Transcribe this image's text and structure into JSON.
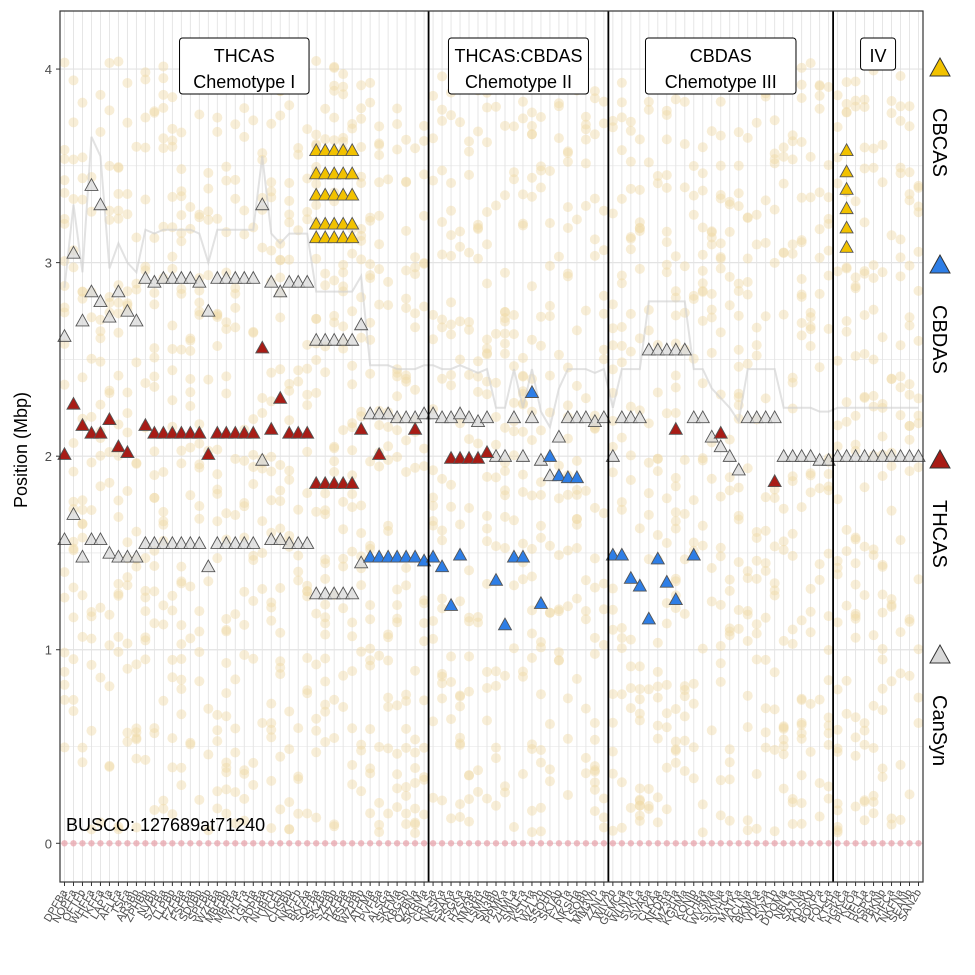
{
  "chart_data": {
    "type": "scatter",
    "ylabel": "Position (Mbp)",
    "xlabel": "",
    "ylim": [
      -0.2,
      4.3
    ],
    "yticks": [
      0,
      1,
      2,
      3,
      4
    ],
    "grid": true,
    "annotation": "BUSCO: 127689at71240",
    "colors": {
      "CBCAS": "#f2c200",
      "CBDAS": "#2e7ee6",
      "THCAS": "#a81c16",
      "CanSyn": "#d9d9d9",
      "busco": "#f0d9a6",
      "baseline": "#e8a0a8"
    },
    "legend": [
      {
        "name": "CBCAS",
        "color": "#f2c200"
      },
      {
        "name": "CBDAS",
        "color": "#2e7ee6"
      },
      {
        "name": "THCAS",
        "color": "#a81c16"
      },
      {
        "name": "CanSyn",
        "color": "#d9d9d9"
      }
    ],
    "groups": [
      {
        "label_lines": [
          "THCAS",
          "Chemotype I"
        ],
        "from": 0,
        "to": 40
      },
      {
        "label_lines": [
          "THCAS:CBDAS",
          "Chemotype II"
        ],
        "from": 41,
        "to": 60
      },
      {
        "label_lines": [
          "CBDAS",
          "Chemotype III"
        ],
        "from": 61,
        "to": 85
      },
      {
        "label_lines": [
          "IV"
        ],
        "from": 86,
        "to": 95
      }
    ],
    "categories": [
      "DPFBa",
      "NOPFa",
      "OFTFb",
      "WHFFa",
      "TKFFa",
      "LAPTa",
      "AFLFa",
      "TSFa",
      "AR3Bb",
      "ZPHBb",
      "NVBb",
      "SZFBa",
      "LLPBb",
      "FZFBa",
      "FSFBa",
      "SD0Bb",
      "SPFBb",
      "WZFBa",
      "MBFBb",
      "MBFBa",
      "VHLFa",
      "LGLHa",
      "ADPBa",
      "NHBFb",
      "VICEb",
      "CHSBb",
      "NKFFb",
      "BKFAa",
      "SQFBa",
      "SK2Ba",
      "SZFBb",
      "HZFBa",
      "BSFBa",
      "WZPBb",
      "ATFMa",
      "PVFBa",
      "ALSGa",
      "SKFMa",
      "KBGSb",
      "QZBNa",
      "SKRMa",
      "CRLSa",
      "NKSKa",
      "ESAKa",
      "FSGKa",
      "HZSAa",
      "NM3Ba",
      "LSMHa",
      "SN3Bb",
      "PPMKa",
      "ZHMLa",
      "SMLFa",
      "KSTHa",
      "WZL2b",
      "SSOHb",
      "SKTAb",
      "FZPTa",
      "NKSHa",
      "LSOBb",
      "MM3Vb",
      "ZZNLa",
      "WIV2b",
      "GEMCa",
      "WLNTa",
      "SVKLa",
      "SVA6a",
      "CLKAa",
      "NFDRa",
      "MZ3Ha",
      "KGHMa",
      "KONIb",
      "FCHBa",
      "WV3Ma",
      "SVKNa",
      "SVHCa",
      "MATKa",
      "ACLNa",
      "BKMKa",
      "VDKSa",
      "SVK1b",
      "DDOMa",
      "NBLTa",
      "SA7Na",
      "KDSKb",
      "BOKPa",
      "FOLCa",
      "KTSHa",
      "HGKCa",
      "PKEOa",
      "HFL1a",
      "RSPCa",
      "PBKNb",
      "ZHFCa",
      "NKFNa",
      "SEANb",
      "SAN2b"
    ],
    "series": [
      {
        "name": "CanSyn",
        "points": [
          [
            0,
            2.62
          ],
          [
            0,
            1.57
          ],
          [
            1,
            1.7
          ],
          [
            1,
            3.05
          ],
          [
            2,
            2.7
          ],
          [
            2,
            1.48
          ],
          [
            3,
            3.4
          ],
          [
            3,
            2.85
          ],
          [
            3,
            1.57
          ],
          [
            4,
            3.3
          ],
          [
            4,
            2.8
          ],
          [
            4,
            1.57
          ],
          [
            5,
            2.72
          ],
          [
            5,
            1.5
          ],
          [
            6,
            2.85
          ],
          [
            6,
            1.48
          ],
          [
            7,
            2.75
          ],
          [
            7,
            1.48
          ],
          [
            8,
            2.7
          ],
          [
            8,
            1.48
          ],
          [
            9,
            2.92
          ],
          [
            9,
            1.55
          ],
          [
            10,
            2.9
          ],
          [
            10,
            1.55
          ],
          [
            11,
            2.92
          ],
          [
            11,
            1.55
          ],
          [
            12,
            2.92
          ],
          [
            12,
            1.55
          ],
          [
            13,
            2.92
          ],
          [
            13,
            1.55
          ],
          [
            14,
            2.92
          ],
          [
            14,
            1.55
          ],
          [
            15,
            2.9
          ],
          [
            15,
            1.55
          ],
          [
            16,
            2.75
          ],
          [
            16,
            1.43
          ],
          [
            17,
            2.92
          ],
          [
            17,
            1.55
          ],
          [
            18,
            2.92
          ],
          [
            18,
            1.55
          ],
          [
            19,
            2.92
          ],
          [
            19,
            1.55
          ],
          [
            20,
            2.92
          ],
          [
            20,
            1.55
          ],
          [
            21,
            2.92
          ],
          [
            21,
            1.55
          ],
          [
            22,
            3.3
          ],
          [
            22,
            1.98
          ],
          [
            23,
            2.9
          ],
          [
            23,
            1.57
          ],
          [
            24,
            2.85
          ],
          [
            24,
            1.57
          ],
          [
            25,
            2.9
          ],
          [
            25,
            1.55
          ],
          [
            26,
            2.9
          ],
          [
            26,
            1.55
          ],
          [
            27,
            2.9
          ],
          [
            27,
            1.55
          ],
          [
            28,
            2.6
          ],
          [
            28,
            1.29
          ],
          [
            29,
            2.6
          ],
          [
            29,
            1.29
          ],
          [
            30,
            2.6
          ],
          [
            30,
            1.29
          ],
          [
            31,
            2.6
          ],
          [
            31,
            1.29
          ],
          [
            32,
            2.6
          ],
          [
            32,
            1.29
          ],
          [
            33,
            2.68
          ],
          [
            33,
            1.45
          ],
          [
            34,
            2.22
          ],
          [
            35,
            2.22
          ],
          [
            36,
            2.22
          ],
          [
            37,
            2.2
          ],
          [
            38,
            2.2
          ],
          [
            39,
            2.2
          ],
          [
            40,
            2.22
          ],
          [
            41,
            2.22
          ],
          [
            42,
            2.2
          ],
          [
            43,
            2.2
          ],
          [
            44,
            2.22
          ],
          [
            45,
            2.2
          ],
          [
            46,
            2.18
          ],
          [
            47,
            2.2
          ],
          [
            48,
            2.0
          ],
          [
            49,
            2.0
          ],
          [
            50,
            2.2
          ],
          [
            51,
            2.0
          ],
          [
            52,
            2.2
          ],
          [
            53,
            1.98
          ],
          [
            54,
            1.9
          ],
          [
            55,
            2.1
          ],
          [
            56,
            2.2
          ],
          [
            57,
            2.2
          ],
          [
            58,
            2.2
          ],
          [
            59,
            2.18
          ],
          [
            60,
            2.2
          ],
          [
            61,
            2.0
          ],
          [
            62,
            2.2
          ],
          [
            63,
            2.2
          ],
          [
            64,
            2.2
          ],
          [
            65,
            2.55
          ],
          [
            66,
            2.55
          ],
          [
            67,
            2.55
          ],
          [
            68,
            2.55
          ],
          [
            69,
            2.55
          ],
          [
            70,
            2.2
          ],
          [
            71,
            2.2
          ],
          [
            72,
            2.1
          ],
          [
            73,
            2.05
          ],
          [
            74,
            2.0
          ],
          [
            75,
            1.93
          ],
          [
            76,
            2.2
          ],
          [
            77,
            2.2
          ],
          [
            78,
            2.2
          ],
          [
            79,
            2.2
          ],
          [
            80,
            2.0
          ],
          [
            81,
            2.0
          ],
          [
            82,
            2.0
          ],
          [
            83,
            2.0
          ],
          [
            84,
            1.98
          ],
          [
            85,
            1.98
          ],
          [
            86,
            2.0
          ],
          [
            87,
            2.0
          ],
          [
            88,
            2.0
          ],
          [
            89,
            2.0
          ],
          [
            90,
            2.0
          ],
          [
            91,
            2.0
          ],
          [
            92,
            2.0
          ],
          [
            93,
            2.0
          ],
          [
            94,
            2.0
          ],
          [
            95,
            2.0
          ]
        ]
      },
      {
        "name": "THCAS",
        "points": [
          [
            0,
            2.01
          ],
          [
            1,
            2.27
          ],
          [
            2,
            2.16
          ],
          [
            3,
            2.12
          ],
          [
            4,
            2.12
          ],
          [
            5,
            2.19
          ],
          [
            6,
            2.05
          ],
          [
            7,
            2.02
          ],
          [
            9,
            2.16
          ],
          [
            10,
            2.12
          ],
          [
            11,
            2.12
          ],
          [
            12,
            2.12
          ],
          [
            13,
            2.12
          ],
          [
            14,
            2.12
          ],
          [
            15,
            2.12
          ],
          [
            16,
            2.01
          ],
          [
            17,
            2.12
          ],
          [
            18,
            2.12
          ],
          [
            19,
            2.12
          ],
          [
            20,
            2.12
          ],
          [
            21,
            2.12
          ],
          [
            22,
            2.56
          ],
          [
            23,
            2.14
          ],
          [
            24,
            2.3
          ],
          [
            25,
            2.12
          ],
          [
            26,
            2.12
          ],
          [
            27,
            2.12
          ],
          [
            28,
            1.86
          ],
          [
            29,
            1.86
          ],
          [
            30,
            1.86
          ],
          [
            31,
            1.86
          ],
          [
            32,
            1.86
          ],
          [
            33,
            2.14
          ],
          [
            35,
            2.01
          ],
          [
            39,
            2.14
          ],
          [
            43,
            1.99
          ],
          [
            44,
            1.99
          ],
          [
            45,
            1.99
          ],
          [
            46,
            1.99
          ],
          [
            47,
            2.02
          ],
          [
            68,
            2.14
          ],
          [
            73,
            2.12
          ],
          [
            79,
            1.87
          ]
        ]
      },
      {
        "name": "CBDAS",
        "points": [
          [
            34,
            1.48
          ],
          [
            35,
            1.48
          ],
          [
            36,
            1.48
          ],
          [
            37,
            1.48
          ],
          [
            38,
            1.48
          ],
          [
            39,
            1.48
          ],
          [
            40,
            1.46
          ],
          [
            41,
            1.48
          ],
          [
            42,
            1.43
          ],
          [
            43,
            1.23
          ],
          [
            44,
            1.49
          ],
          [
            48,
            1.36
          ],
          [
            49,
            1.13
          ],
          [
            50,
            1.48
          ],
          [
            51,
            1.48
          ],
          [
            52,
            2.33
          ],
          [
            53,
            1.24
          ],
          [
            54,
            2.0
          ],
          [
            55,
            1.9
          ],
          [
            56,
            1.89
          ],
          [
            57,
            1.89
          ],
          [
            61,
            1.49
          ],
          [
            62,
            1.49
          ],
          [
            63,
            1.37
          ],
          [
            64,
            1.33
          ],
          [
            65,
            1.16
          ],
          [
            66,
            1.47
          ],
          [
            67,
            1.35
          ],
          [
            68,
            1.26
          ],
          [
            70,
            1.49
          ]
        ]
      },
      {
        "name": "CBCAS",
        "points": [
          [
            28,
            3.58
          ],
          [
            28,
            3.46
          ],
          [
            28,
            3.35
          ],
          [
            28,
            3.2
          ],
          [
            28,
            3.13
          ],
          [
            29,
            3.58
          ],
          [
            29,
            3.46
          ],
          [
            29,
            3.35
          ],
          [
            29,
            3.2
          ],
          [
            29,
            3.13
          ],
          [
            30,
            3.58
          ],
          [
            30,
            3.46
          ],
          [
            30,
            3.35
          ],
          [
            30,
            3.2
          ],
          [
            30,
            3.13
          ],
          [
            31,
            3.58
          ],
          [
            31,
            3.46
          ],
          [
            31,
            3.35
          ],
          [
            31,
            3.2
          ],
          [
            31,
            3.13
          ],
          [
            32,
            3.58
          ],
          [
            32,
            3.46
          ],
          [
            32,
            3.35
          ],
          [
            32,
            3.2
          ],
          [
            32,
            3.13
          ],
          [
            87,
            3.58
          ],
          [
            87,
            3.47
          ],
          [
            87,
            3.38
          ],
          [
            87,
            3.28
          ],
          [
            87,
            3.18
          ],
          [
            87,
            3.08
          ]
        ]
      }
    ]
  }
}
